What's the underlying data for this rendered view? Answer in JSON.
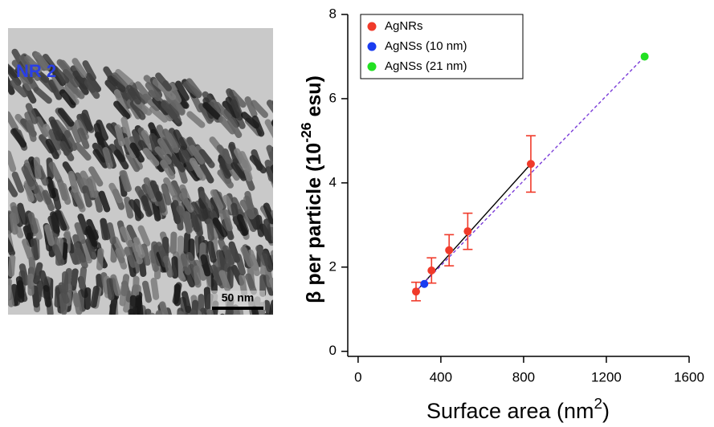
{
  "image_panel": {
    "label": "NR 2",
    "scale_bar": "50 nm"
  },
  "chart_data": {
    "type": "scatter",
    "x_label": {
      "text": "Surface area (nm",
      "sup": "2",
      "tail": ")"
    },
    "y_label": {
      "text": "β per particle (10",
      "sup": "-26",
      "tail": " esu)"
    },
    "xlim": [
      -50,
      1600
    ],
    "xticks": [
      0,
      400,
      800,
      1200,
      1600
    ],
    "ylim": [
      -0.12,
      8
    ],
    "yticks": [
      0,
      2,
      4,
      6,
      8
    ],
    "legend": "top-left",
    "series": [
      {
        "name": "AgNRs",
        "color": "#f03a2a",
        "x": [
          280,
          355,
          440,
          530,
          835
        ],
        "values": [
          1.42,
          1.92,
          2.4,
          2.85,
          4.45
        ],
        "errors": [
          0.22,
          0.3,
          0.37,
          0.43,
          0.67
        ]
      },
      {
        "name": "AgNSs (10 nm)",
        "color": "#1a3cf0",
        "x": [
          320
        ],
        "values": [
          1.6
        ]
      },
      {
        "name": "AgNSs (21 nm)",
        "color": "#22e022",
        "x": [
          1385
        ],
        "values": [
          7.0
        ]
      }
    ],
    "fit_lines": [
      {
        "color": "#000000",
        "dashed": false,
        "x": [
          280,
          835
        ],
        "values": [
          1.42,
          4.45
        ]
      },
      {
        "color": "#7a3cd8",
        "dashed": true,
        "x": [
          290,
          1385
        ],
        "values": [
          1.48,
          7.0
        ]
      }
    ]
  }
}
